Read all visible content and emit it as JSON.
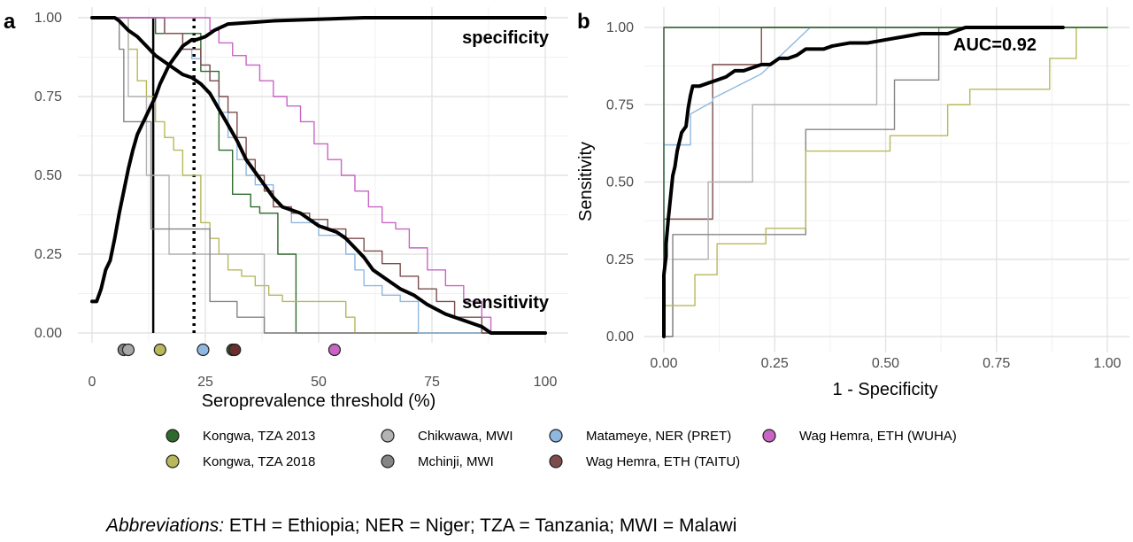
{
  "figure": {
    "abbreviations_lead": "Abbreviations:",
    "abbreviations_text": " ETH = Ethiopia; NER = Niger; TZA = Tanzania; MWI = Malawi"
  },
  "legend": {
    "items": [
      {
        "label": "Kongwa, TZA 2013",
        "color": "#2d6a2d"
      },
      {
        "label": "Chikwawa, MWI",
        "color": "#b3b3b3"
      },
      {
        "label": "Matameye, NER (PRET)",
        "color": "#8fb8e0"
      },
      {
        "label": "Wag Hemra, ETH (WUHA)",
        "color": "#c865c4"
      },
      {
        "label": "Kongwa, TZA 2018",
        "color": "#b8b85a"
      },
      {
        "label": "Mchinji, MWI",
        "color": "#858585"
      },
      {
        "label": "Wag Hemra, ETH (TAITU)",
        "color": "#7d4c4c"
      }
    ]
  },
  "chart_data": [
    {
      "panel": "a",
      "type": "line",
      "xlabel": "Seroprevalence threshold (%)",
      "ylabel": "",
      "xlim": [
        0,
        100
      ],
      "ylim": [
        0,
        1
      ],
      "xticks": [
        "0",
        "25",
        "50",
        "75",
        "100"
      ],
      "yticks": [
        "0.00",
        "0.25",
        "0.50",
        "0.75",
        "1.00"
      ],
      "grid": true,
      "annotations": [
        "specificity",
        "sensitivity"
      ],
      "vlines": [
        {
          "x": 13.5,
          "style": "solid"
        },
        {
          "x": 22.5,
          "style": "dotted"
        }
      ],
      "series": [
        {
          "name": "specificity",
          "color": "#000000",
          "step": false,
          "width": 4,
          "x": [
            0,
            1,
            2,
            3,
            4,
            5,
            6,
            7,
            8,
            9,
            10,
            11,
            12,
            13,
            14,
            15,
            16,
            17,
            18,
            19,
            20,
            21,
            22,
            23,
            25,
            27,
            30,
            35,
            40,
            50,
            60,
            100
          ],
          "y": [
            0.1,
            0.1,
            0.14,
            0.2,
            0.23,
            0.3,
            0.38,
            0.45,
            0.52,
            0.58,
            0.63,
            0.66,
            0.69,
            0.72,
            0.75,
            0.79,
            0.82,
            0.85,
            0.87,
            0.89,
            0.91,
            0.92,
            0.93,
            0.93,
            0.94,
            0.96,
            0.98,
            0.985,
            0.99,
            0.995,
            1.0,
            1.0
          ]
        },
        {
          "name": "sensitivity",
          "color": "#000000",
          "step": false,
          "width": 4,
          "x": [
            0,
            5,
            6,
            8,
            10,
            12,
            14,
            16,
            18,
            20,
            22,
            24,
            26,
            28,
            30,
            32,
            34,
            36,
            38,
            40,
            42,
            44,
            46,
            48,
            50,
            52,
            54,
            56,
            58,
            60,
            62,
            65,
            68,
            71,
            74,
            78,
            82,
            86,
            88,
            100
          ],
          "y": [
            1.0,
            1.0,
            0.99,
            0.96,
            0.94,
            0.91,
            0.88,
            0.86,
            0.84,
            0.82,
            0.81,
            0.79,
            0.76,
            0.71,
            0.66,
            0.61,
            0.55,
            0.51,
            0.47,
            0.43,
            0.4,
            0.39,
            0.38,
            0.36,
            0.34,
            0.33,
            0.32,
            0.3,
            0.27,
            0.24,
            0.2,
            0.17,
            0.14,
            0.12,
            0.09,
            0.06,
            0.04,
            0.02,
            0.0,
            0.0
          ]
        },
        {
          "name": "Kongwa, TZA 2013",
          "color": "#2d6a2d",
          "step": true,
          "width": 1.4,
          "x": [
            0,
            12,
            14,
            24,
            28,
            31,
            35,
            37,
            41,
            45,
            100
          ],
          "y": [
            1.0,
            1.0,
            0.95,
            0.83,
            0.58,
            0.44,
            0.4,
            0.38,
            0.25,
            0.0,
            0.0
          ]
        },
        {
          "name": "Kongwa, TZA 2018",
          "color": "#b8b85a",
          "step": true,
          "width": 1.4,
          "x": [
            0,
            7,
            8,
            10,
            12,
            14,
            16,
            18,
            20,
            24,
            26,
            28,
            30,
            33,
            36,
            39,
            42,
            45,
            48,
            52,
            54,
            56,
            58,
            100
          ],
          "y": [
            1.0,
            1.0,
            0.9,
            0.8,
            0.75,
            0.67,
            0.62,
            0.58,
            0.5,
            0.35,
            0.3,
            0.25,
            0.2,
            0.18,
            0.15,
            0.12,
            0.1,
            0.1,
            0.1,
            0.1,
            0.1,
            0.05,
            0.0,
            0.0
          ]
        },
        {
          "name": "Chikwawa, MWI",
          "color": "#b3b3b3",
          "step": true,
          "width": 1.4,
          "x": [
            0,
            6,
            8,
            10,
            12,
            14,
            17,
            19,
            28,
            36,
            38,
            100
          ],
          "y": [
            1.0,
            1.0,
            0.75,
            0.75,
            0.5,
            0.5,
            0.25,
            0.25,
            0.25,
            0.25,
            0.0,
            0.0
          ]
        },
        {
          "name": "Mchinji, MWI",
          "color": "#858585",
          "step": true,
          "width": 1.4,
          "x": [
            0,
            5,
            6,
            7,
            12,
            13,
            22,
            26,
            32,
            38,
            100
          ],
          "y": [
            1.0,
            1.0,
            0.9,
            0.67,
            0.67,
            0.33,
            0.33,
            0.1,
            0.05,
            0.0,
            0.0
          ]
        },
        {
          "name": "Matameye, NER (PRET)",
          "color": "#8fb8e0",
          "step": true,
          "width": 1.4,
          "x": [
            0,
            12,
            16,
            20,
            22,
            24,
            26,
            28,
            30,
            32,
            34,
            36,
            40,
            44,
            50,
            54,
            56,
            58,
            60,
            64,
            68,
            72,
            100
          ],
          "y": [
            1.0,
            1.0,
            0.95,
            0.9,
            0.87,
            0.85,
            0.8,
            0.7,
            0.62,
            0.55,
            0.5,
            0.47,
            0.4,
            0.35,
            0.31,
            0.31,
            0.25,
            0.2,
            0.15,
            0.12,
            0.1,
            0.0,
            0.0
          ]
        },
        {
          "name": "Wag Hemra, ETH (TAITU)",
          "color": "#7d4c4c",
          "step": true,
          "width": 1.4,
          "x": [
            0,
            12,
            16,
            20,
            24,
            26,
            28,
            30,
            32,
            34,
            36,
            38,
            40,
            44,
            48,
            52,
            56,
            60,
            64,
            68,
            72,
            76,
            80,
            86,
            100
          ],
          "y": [
            1.0,
            1.0,
            0.95,
            0.9,
            0.85,
            0.8,
            0.75,
            0.7,
            0.62,
            0.55,
            0.5,
            0.45,
            0.4,
            0.38,
            0.36,
            0.33,
            0.3,
            0.26,
            0.22,
            0.18,
            0.14,
            0.1,
            0.05,
            0.0,
            0.0
          ]
        },
        {
          "name": "Wag Hemra, ETH (WUHA)",
          "color": "#c865c4",
          "step": true,
          "width": 1.4,
          "x": [
            0,
            24,
            26,
            28,
            31,
            34,
            37,
            40,
            43,
            46,
            49,
            52,
            55,
            58,
            61,
            64,
            67,
            70,
            74,
            78,
            82,
            86,
            88,
            100
          ],
          "y": [
            1.0,
            1.0,
            0.96,
            0.92,
            0.88,
            0.85,
            0.8,
            0.75,
            0.72,
            0.67,
            0.6,
            0.55,
            0.5,
            0.45,
            0.4,
            0.35,
            0.33,
            0.27,
            0.2,
            0.15,
            0.1,
            0.05,
            0.0,
            0.0
          ]
        }
      ],
      "threshold_points": [
        {
          "name": "Mchinji, MWI",
          "x": 7.0,
          "color": "#858585"
        },
        {
          "name": "Chikwawa, MWI",
          "x": 8.0,
          "color": "#a8a8a8"
        },
        {
          "name": "Kongwa, TZA 2018",
          "x": 15.0,
          "color": "#b8b85a"
        },
        {
          "name": "Matameye, NER (PRET)",
          "x": 24.5,
          "color": "#8fb8e0"
        },
        {
          "name": "Kongwa, TZA 2013",
          "x": 31.0,
          "color": "#2d6a2d"
        },
        {
          "name": "Wag Hemra, ETH (TAITU)",
          "x": 31.5,
          "color": "#6b2e2e"
        },
        {
          "name": "Wag Hemra, ETH (WUHA)",
          "x": 53.5,
          "color": "#c865c4"
        }
      ]
    },
    {
      "panel": "b",
      "type": "line",
      "xlabel": "1 - Specificity",
      "ylabel": "Sensitivity",
      "xlim": [
        0,
        1
      ],
      "ylim": [
        0,
        1
      ],
      "xticks": [
        "0.00",
        "0.25",
        "0.50",
        "0.75",
        "1.00"
      ],
      "yticks": [
        "0.00",
        "0.25",
        "0.50",
        "0.75",
        "1.00"
      ],
      "grid": true,
      "annotations": [
        "AUC=0.92"
      ],
      "series": [
        {
          "name": "Wag Hemra, ETH (WUHA)",
          "color": "#c865c4",
          "step": true,
          "width": 1.4,
          "x": [
            0,
            0,
            1.0
          ],
          "y": [
            0,
            1.0,
            1.0
          ]
        },
        {
          "name": "Wag Hemra, ETH (TAITU)",
          "color": "#7d4c4c",
          "step": true,
          "width": 1.4,
          "x": [
            0,
            0,
            0.11,
            0.11,
            0.22,
            0.22,
            1.0
          ],
          "y": [
            0,
            0.38,
            0.42,
            0.88,
            0.88,
            1.0,
            1.0
          ]
        },
        {
          "name": "Matameye, NER (PRET)",
          "color": "#8fb8e0",
          "step": false,
          "width": 1.4,
          "x": [
            0,
            0,
            0.06,
            0.06,
            0.11,
            0.11,
            0.22,
            0.33,
            1.0
          ],
          "y": [
            0,
            0.62,
            0.62,
            0.72,
            0.76,
            0.77,
            0.85,
            1.0,
            1.0
          ]
        },
        {
          "name": "Chikwawa, MWI",
          "color": "#b3b3b3",
          "step": true,
          "width": 1.4,
          "x": [
            0,
            0.02,
            0.02,
            0.1,
            0.1,
            0.2,
            0.2,
            0.48,
            1.0
          ],
          "y": [
            0,
            0,
            0.25,
            0.25,
            0.5,
            0.5,
            0.75,
            1.0,
            1.0
          ]
        },
        {
          "name": "Mchinji, MWI",
          "color": "#858585",
          "step": true,
          "width": 1.4,
          "x": [
            0,
            0.02,
            0.02,
            0.25,
            0.32,
            0.38,
            0.52,
            0.52,
            0.59,
            0.62,
            1.0
          ],
          "y": [
            0,
            0,
            0.33,
            0.33,
            0.67,
            0.67,
            0.67,
            0.83,
            0.83,
            1.0,
            1.0
          ]
        },
        {
          "name": "Kongwa, TZA 2018",
          "color": "#b8b85a",
          "step": true,
          "width": 1.4,
          "x": [
            0,
            0,
            0.07,
            0.07,
            0.12,
            0.12,
            0.16,
            0.16,
            0.23,
            0.32,
            0.32,
            0.37,
            0.51,
            0.64,
            0.69,
            0.69,
            0.87,
            0.87,
            0.93,
            1.0
          ],
          "y": [
            0,
            0.1,
            0.1,
            0.2,
            0.25,
            0.3,
            0.3,
            0.3,
            0.35,
            0.4,
            0.6,
            0.6,
            0.65,
            0.75,
            0.75,
            0.8,
            0.8,
            0.9,
            1.0,
            1.0
          ]
        },
        {
          "name": "Kongwa, TZA 2013",
          "color": "#2d6a2d",
          "step": true,
          "width": 1.4,
          "x": [
            0,
            0,
            1.0
          ],
          "y": [
            0,
            1.0,
            1.0
          ]
        },
        {
          "name": "Overall",
          "color": "#000000",
          "step": false,
          "width": 4,
          "x": [
            0,
            0,
            0.005,
            0.005,
            0.01,
            0.015,
            0.02,
            0.025,
            0.03,
            0.035,
            0.04,
            0.05,
            0.055,
            0.06,
            0.065,
            0.08,
            0.1,
            0.12,
            0.14,
            0.16,
            0.18,
            0.2,
            0.22,
            0.24,
            0.26,
            0.28,
            0.3,
            0.32,
            0.34,
            0.36,
            0.38,
            0.42,
            0.46,
            0.5,
            0.54,
            0.58,
            0.62,
            0.64,
            0.66,
            0.68,
            0.7,
            0.8,
            0.9
          ],
          "y": [
            0,
            0.2,
            0.26,
            0.3,
            0.38,
            0.45,
            0.52,
            0.55,
            0.6,
            0.63,
            0.66,
            0.68,
            0.74,
            0.78,
            0.81,
            0.81,
            0.82,
            0.83,
            0.84,
            0.86,
            0.86,
            0.87,
            0.88,
            0.88,
            0.9,
            0.9,
            0.91,
            0.93,
            0.93,
            0.93,
            0.94,
            0.95,
            0.95,
            0.96,
            0.97,
            0.98,
            0.98,
            0.98,
            0.99,
            1.0,
            1.0,
            1.0,
            1.0
          ]
        }
      ]
    }
  ]
}
